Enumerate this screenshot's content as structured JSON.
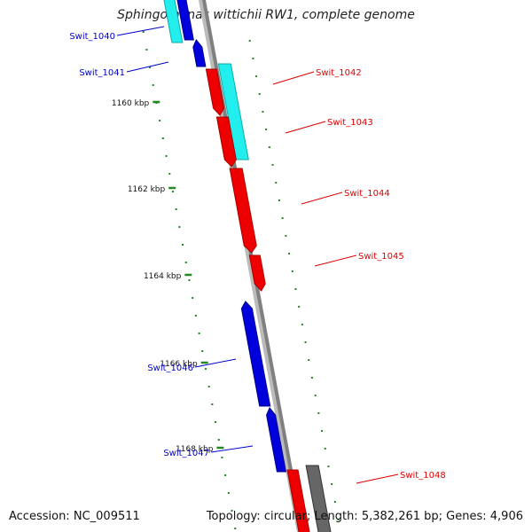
{
  "title": "Sphingomonas wittichii RW1, complete genome",
  "footer": {
    "accession_label": "Accession:",
    "accession": "NC_009511",
    "topology_label": "Topology:",
    "topology": "circular",
    "length_label": "Length:",
    "length": "5,382,261 bp",
    "genes_label": "Genes:",
    "genes": "4,906"
  },
  "colors": {
    "backbone": "#808080",
    "forward": "#ee0000",
    "reverse": "#0000dd",
    "cyan": "#22eeee",
    "gray_feature": "#666666",
    "tick": "#228822",
    "blue_label": "#0000cc",
    "red_label": "#dd0000"
  },
  "ticks": [
    "1160 kbp",
    "1162 kbp",
    "1164 kbp",
    "1166 kbp",
    "1168 kbp"
  ],
  "genes": [
    {
      "name": "Swit_1040",
      "strand": "reverse"
    },
    {
      "name": "Swit_1041",
      "strand": "reverse"
    },
    {
      "name": "Swit_1042",
      "strand": "forward"
    },
    {
      "name": "Swit_1043",
      "strand": "forward"
    },
    {
      "name": "Swit_1044",
      "strand": "forward"
    },
    {
      "name": "Swit_1045",
      "strand": "forward"
    },
    {
      "name": "Swit_1046",
      "strand": "reverse"
    },
    {
      "name": "Swit_1047",
      "strand": "reverse"
    },
    {
      "name": "Swit_1048",
      "strand": "forward"
    }
  ]
}
